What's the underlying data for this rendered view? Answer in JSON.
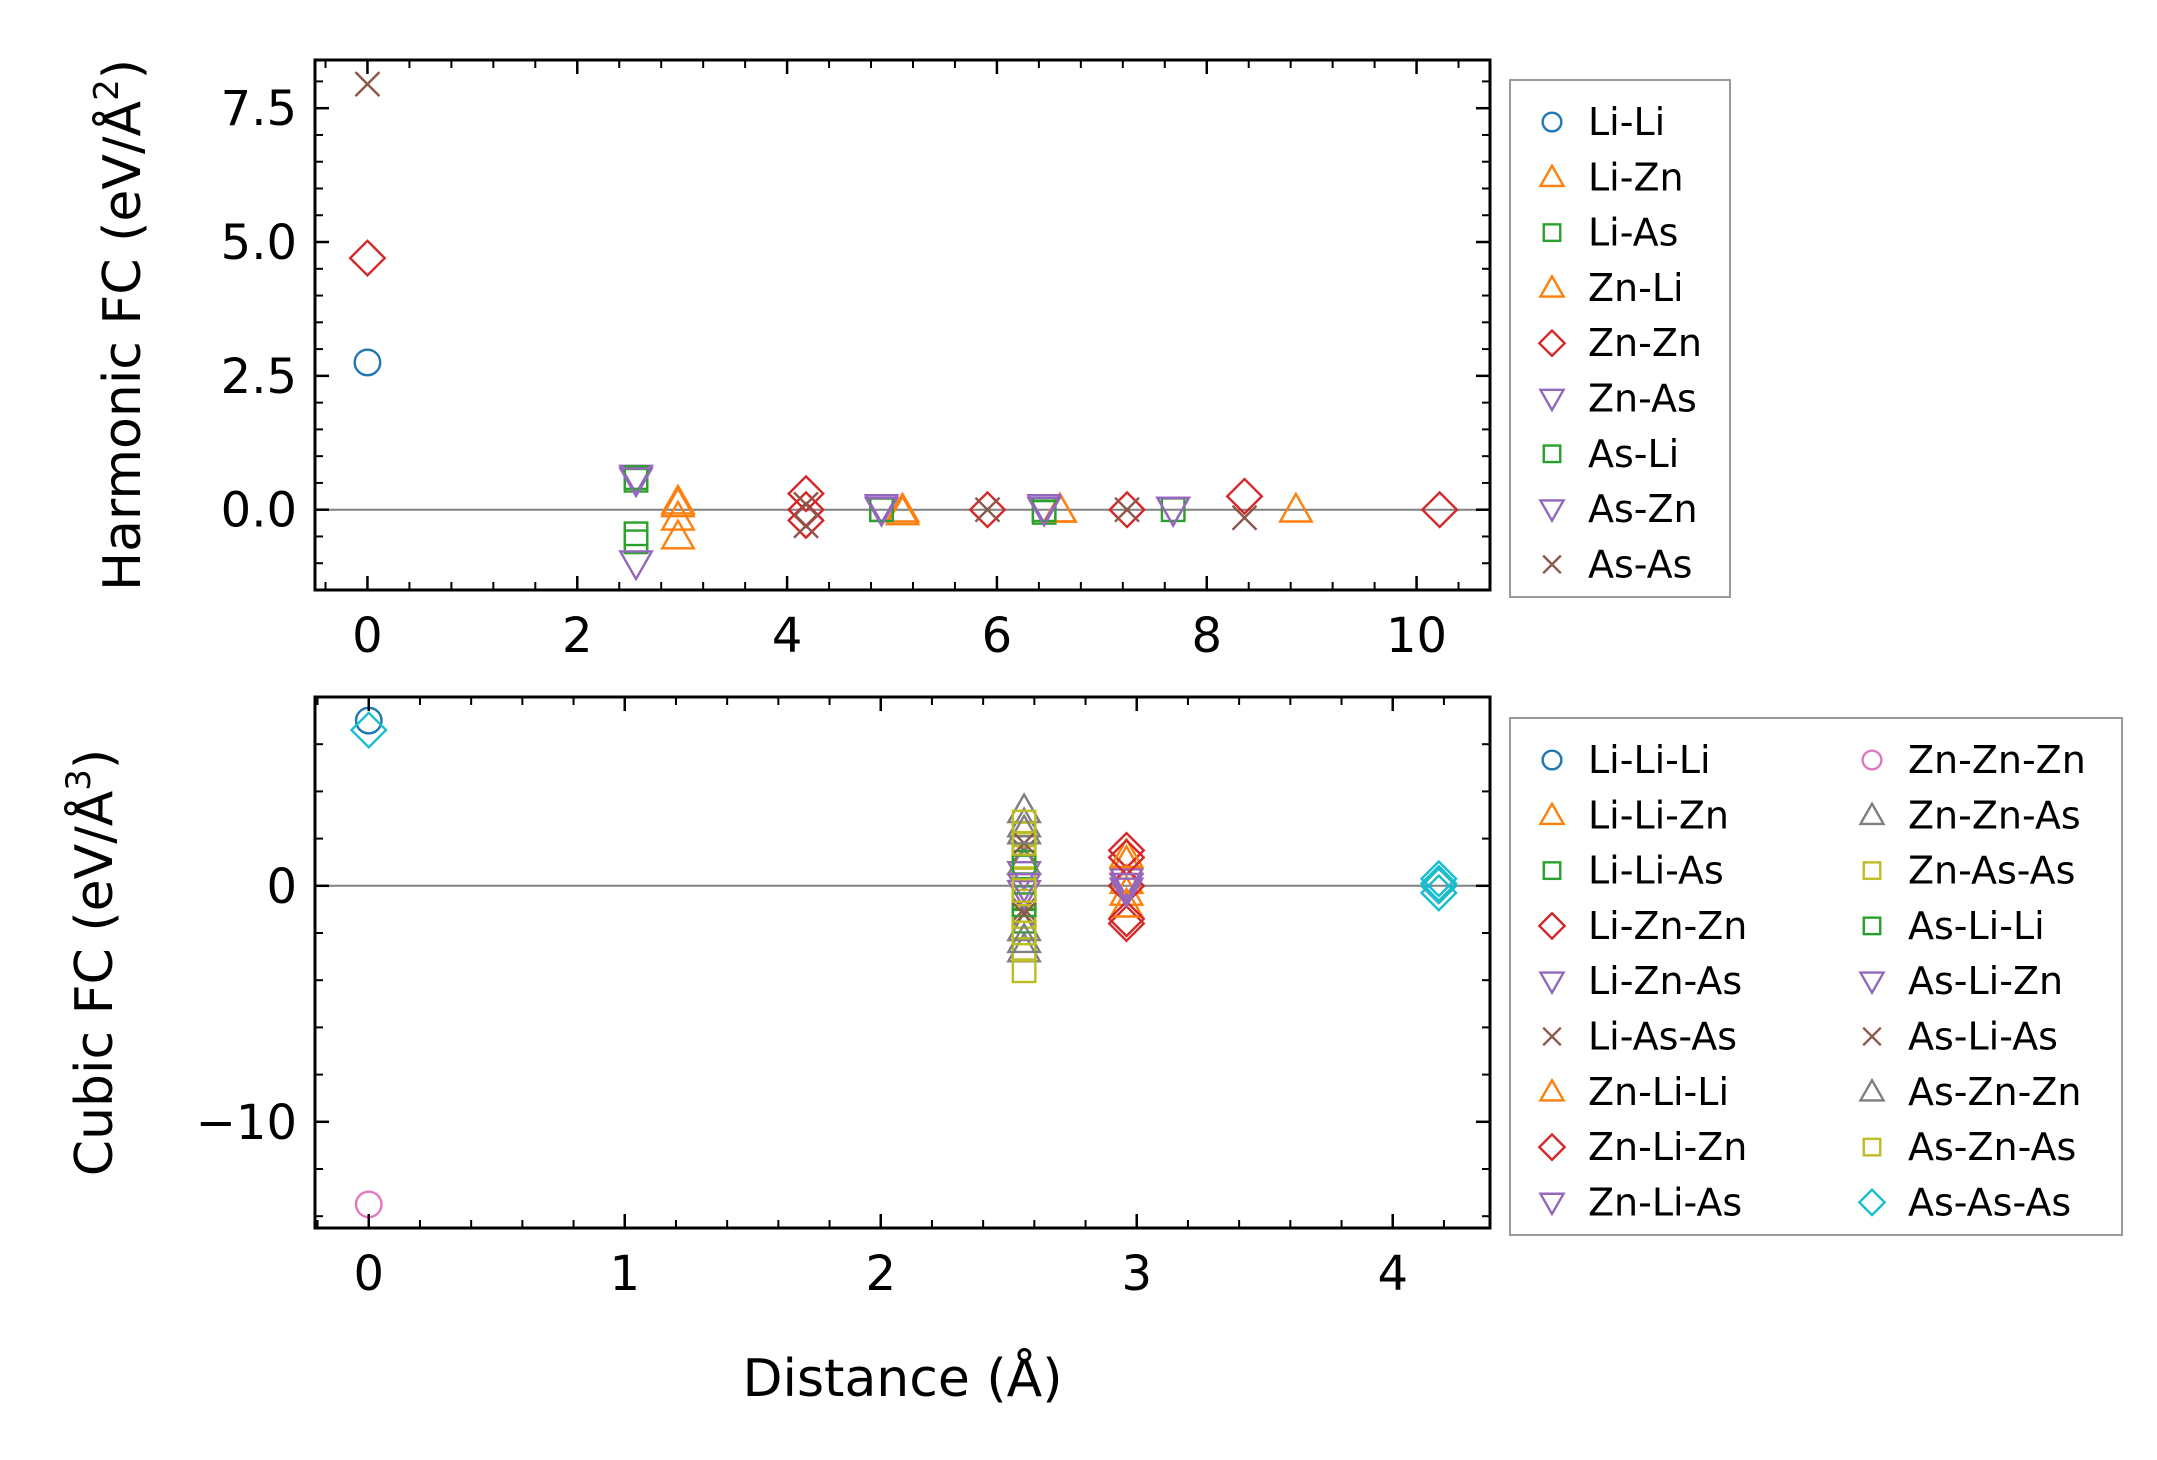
{
  "chart_data": [
    {
      "type": "scatter",
      "name": "harmonic",
      "ylabel": "Harmonic FC (eV/Å²)",
      "ylabel_main": "Harmonic FC (eV/Å",
      "ylabel_sup": "2",
      "ylabel_end": ")",
      "xlabel": "",
      "xlim": [
        -0.5,
        10.7
      ],
      "ylim": [
        -1.5,
        8.4
      ],
      "xticks": [
        0,
        2,
        4,
        6,
        8,
        10
      ],
      "xtick_labels": [
        "0",
        "2",
        "4",
        "6",
        "8",
        "10"
      ],
      "yticks": [
        0.0,
        2.5,
        5.0,
        7.5
      ],
      "ytick_labels": [
        "0.0",
        "2.5",
        "5.0",
        "7.5"
      ],
      "zero_line": true,
      "legend_position": "outside-right",
      "series": [
        {
          "name": "Li-Li",
          "color": "#1f77b4",
          "marker": "circle",
          "x": [
            0.0
          ],
          "y": [
            2.75
          ]
        },
        {
          "name": "Li-Zn",
          "color": "#ff7f0e",
          "marker": "triangle-up",
          "x": [
            2.96,
            2.96,
            2.96,
            5.1,
            6.6,
            8.85
          ],
          "y": [
            0.15,
            -0.15,
            -0.5,
            -0.05,
            0.0,
            0.0
          ]
        },
        {
          "name": "Li-As",
          "color": "#2ca02c",
          "marker": "square",
          "x": [
            2.56,
            2.56,
            2.56,
            4.9,
            6.45,
            7.68
          ],
          "y": [
            0.55,
            -0.45,
            -0.6,
            0.0,
            -0.05,
            0.0
          ]
        },
        {
          "name": "Zn-Li",
          "color": "#ff7f0e",
          "marker": "triangle-up",
          "x": [
            2.96,
            5.1,
            6.6
          ],
          "y": [
            0.1,
            0.0,
            0.0
          ]
        },
        {
          "name": "Zn-Zn",
          "color": "#d62728",
          "marker": "diamond",
          "x": [
            0.0,
            4.18,
            4.18,
            4.18,
            5.91,
            7.24,
            8.36,
            10.22
          ],
          "y": [
            4.7,
            0.3,
            0.0,
            -0.2,
            0.0,
            0.0,
            0.25,
            0.0
          ]
        },
        {
          "name": "Zn-As",
          "color": "#9467bd",
          "marker": "triangle-down",
          "x": [
            2.56,
            2.56,
            4.9,
            6.45,
            7.68
          ],
          "y": [
            0.6,
            -1.0,
            0.05,
            0.05,
            0.0
          ]
        },
        {
          "name": "As-Li",
          "color": "#2ca02c",
          "marker": "square",
          "x": [
            2.56,
            4.9,
            6.45
          ],
          "y": [
            0.6,
            0.0,
            0.0
          ]
        },
        {
          "name": "As-Zn",
          "color": "#9467bd",
          "marker": "triangle-down",
          "x": [
            2.56,
            4.9,
            6.45,
            7.68
          ],
          "y": [
            0.55,
            0.0,
            0.0,
            0.0
          ]
        },
        {
          "name": "As-As",
          "color": "#8c564b",
          "marker": "x",
          "x": [
            0.0,
            4.18,
            4.18,
            5.91,
            7.24,
            8.36
          ],
          "y": [
            7.95,
            0.1,
            -0.3,
            0.0,
            0.0,
            -0.15
          ]
        }
      ]
    },
    {
      "type": "scatter",
      "name": "cubic",
      "ylabel": "Cubic FC (eV/Å³)",
      "ylabel_main": "Cubic FC (eV/Å",
      "ylabel_sup": "3",
      "ylabel_end": ")",
      "xlabel": "Distance (Å)",
      "xlim": [
        -0.21,
        4.38
      ],
      "ylim": [
        -14.5,
        8.0
      ],
      "xticks": [
        0,
        1,
        2,
        3,
        4
      ],
      "xtick_labels": [
        "0",
        "1",
        "2",
        "3",
        "4"
      ],
      "yticks": [
        -10,
        0
      ],
      "ytick_labels": [
        "−10",
        "0"
      ],
      "zero_line": true,
      "legend_position": "outside-right",
      "series": [
        {
          "name": "Li-Li-Li",
          "color": "#1f77b4",
          "marker": "circle",
          "x": [
            0.0
          ],
          "y": [
            7.0
          ]
        },
        {
          "name": "Li-Li-Zn",
          "color": "#ff7f0e",
          "marker": "triangle-up",
          "x": [
            2.96,
            2.96,
            2.96
          ],
          "y": [
            1.0,
            0.2,
            -0.3
          ]
        },
        {
          "name": "Li-Li-As",
          "color": "#2ca02c",
          "marker": "square",
          "x": [
            2.56,
            2.56,
            2.56
          ],
          "y": [
            0.8,
            -0.5,
            -1.5
          ]
        },
        {
          "name": "Li-Zn-Zn",
          "color": "#d62728",
          "marker": "diamond",
          "x": [
            2.96,
            2.96,
            2.96
          ],
          "y": [
            1.5,
            0.0,
            -1.6
          ]
        },
        {
          "name": "Li-Zn-As",
          "color": "#9467bd",
          "marker": "triangle-down",
          "x": [
            2.56,
            2.96
          ],
          "y": [
            0.5,
            0.2
          ]
        },
        {
          "name": "Li-As-As",
          "color": "#8c564b",
          "marker": "x",
          "x": [
            2.56,
            2.56
          ],
          "y": [
            1.5,
            -1.0
          ]
        },
        {
          "name": "Zn-Li-Li",
          "color": "#ff7f0e",
          "marker": "triangle-up",
          "x": [
            2.96,
            2.96
          ],
          "y": [
            1.3,
            -0.8
          ]
        },
        {
          "name": "Zn-Li-Zn",
          "color": "#d62728",
          "marker": "diamond",
          "x": [
            2.96,
            2.96,
            4.18
          ],
          "y": [
            1.2,
            -1.4,
            0.0
          ]
        },
        {
          "name": "Zn-Li-As",
          "color": "#9467bd",
          "marker": "triangle-down",
          "x": [
            2.56,
            2.96
          ],
          "y": [
            -0.3,
            0.0
          ]
        },
        {
          "name": "Zn-Zn-Zn",
          "color": "#e377c2",
          "marker": "circle",
          "x": [
            0.0
          ],
          "y": [
            -13.5
          ]
        },
        {
          "name": "Zn-Zn-As",
          "color": "#7f7f7f",
          "marker": "triangle-up",
          "x": [
            2.56,
            2.56,
            2.56,
            2.56,
            2.56
          ],
          "y": [
            3.2,
            2.6,
            1.0,
            -1.8,
            -2.7
          ]
        },
        {
          "name": "Zn-As-As",
          "color": "#bcbd22",
          "marker": "square",
          "x": [
            2.56,
            2.56,
            2.56,
            2.56,
            2.56,
            2.56,
            2.56
          ],
          "y": [
            2.7,
            2.2,
            1.2,
            0.3,
            -1.3,
            -2.7,
            -3.6
          ]
        },
        {
          "name": "As-Li-Li",
          "color": "#2ca02c",
          "marker": "square",
          "x": [
            2.56,
            2.56
          ],
          "y": [
            1.0,
            -0.8
          ]
        },
        {
          "name": "As-Li-Zn",
          "color": "#9467bd",
          "marker": "triangle-down",
          "x": [
            2.56,
            2.96
          ],
          "y": [
            0.0,
            -0.2
          ]
        },
        {
          "name": "As-Li-As",
          "color": "#8c564b",
          "marker": "x",
          "x": [
            2.56,
            2.56
          ],
          "y": [
            1.8,
            -1.2
          ]
        },
        {
          "name": "As-Zn-Zn",
          "color": "#7f7f7f",
          "marker": "triangle-up",
          "x": [
            2.56,
            2.56
          ],
          "y": [
            2.3,
            -2.3
          ]
        },
        {
          "name": "As-Zn-As",
          "color": "#bcbd22",
          "marker": "square",
          "x": [
            2.56,
            2.56,
            2.56
          ],
          "y": [
            1.8,
            -0.2,
            -2.0
          ]
        },
        {
          "name": "As-As-As",
          "color": "#17becf",
          "marker": "diamond",
          "x": [
            0.0,
            4.18,
            4.18,
            4.18,
            4.18
          ],
          "y": [
            6.6,
            0.3,
            0.0,
            -0.3,
            0.1
          ]
        }
      ]
    }
  ]
}
